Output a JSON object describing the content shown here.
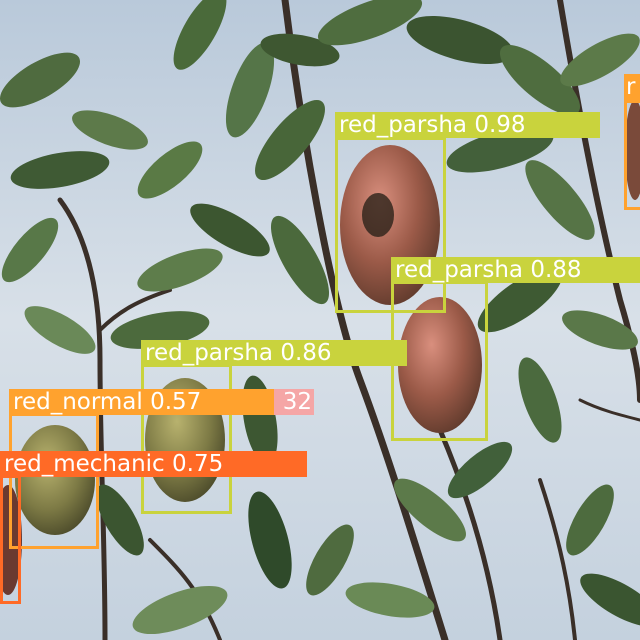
{
  "colors": {
    "parsha": "#c9d33d",
    "normal": "#ffa22e",
    "mechanic": "#ff6a26",
    "partial": "#f5a6a6"
  },
  "detections": {
    "parsha_1": "red_parsha 0.98",
    "parsha_2": "red_parsha 0.88",
    "parsha_3": "red_parsha 0.86",
    "normal_1": "red_normal 0.57",
    "partial_1": "32",
    "mechanic_1": "red_mechanic 0.75",
    "edge_1": "r"
  }
}
